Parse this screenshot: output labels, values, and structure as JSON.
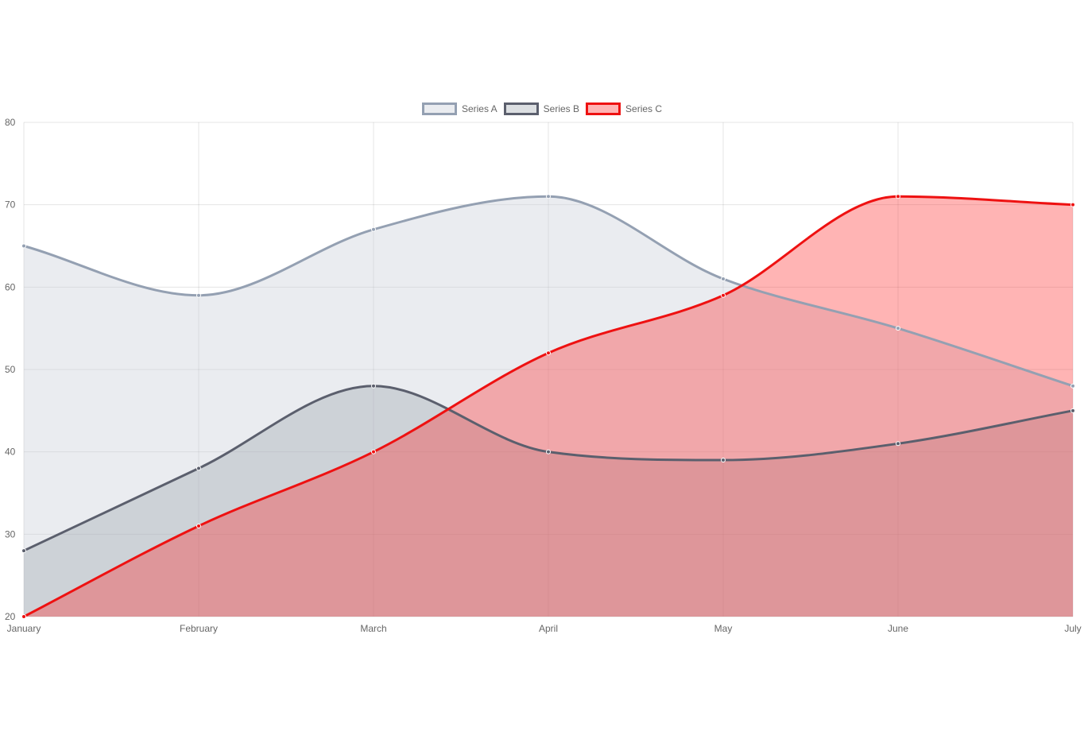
{
  "chart_data": {
    "type": "area",
    "categories": [
      "January",
      "February",
      "March",
      "April",
      "May",
      "June",
      "July"
    ],
    "ylim": [
      20,
      80
    ],
    "yticks": [
      20,
      30,
      40,
      50,
      60,
      70,
      80
    ],
    "grid": true,
    "legend_position": "top",
    "series": [
      {
        "name": "Series A",
        "values": [
          65,
          59,
          67,
          71,
          61,
          55,
          48
        ],
        "stroke": "#94a0b2",
        "fill": "rgba(203,208,218,0.40)"
      },
      {
        "name": "Series B",
        "values": [
          28,
          38,
          48,
          40,
          39,
          41,
          45
        ],
        "stroke": "#5b5f6d",
        "fill": "rgba(140,148,160,0.30)"
      },
      {
        "name": "Series C",
        "values": [
          20,
          31,
          40,
          52,
          59,
          71,
          70
        ],
        "stroke": "#ee1111",
        "fill": "rgba(255,40,40,0.35)"
      }
    ]
  }
}
